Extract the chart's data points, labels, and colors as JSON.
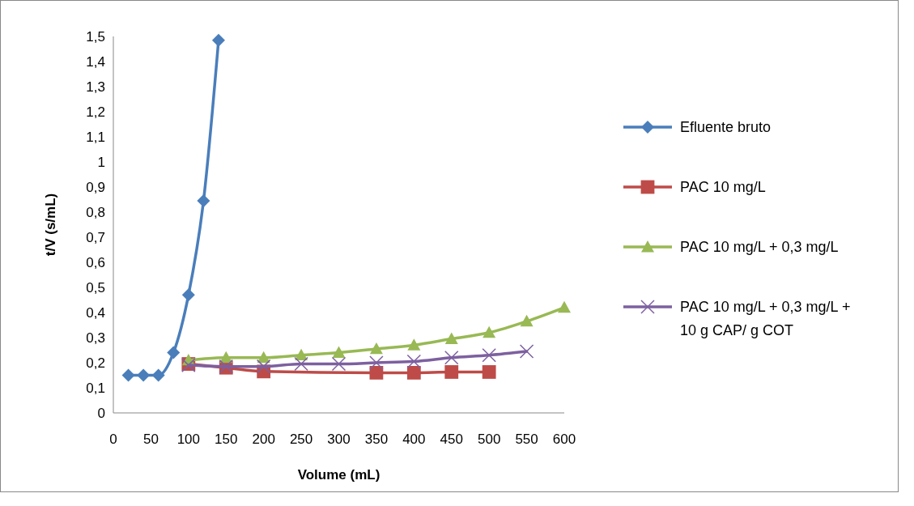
{
  "chart_data": {
    "type": "line",
    "xlabel": "Volume (mL)",
    "ylabel": "t/V (s/mL)",
    "xlim": [
      0,
      600
    ],
    "xticks": [
      0,
      50,
      100,
      150,
      200,
      250,
      300,
      350,
      400,
      450,
      500,
      550,
      600
    ],
    "ylim": [
      0,
      1.5
    ],
    "yticks": [
      {
        "value": 0,
        "label": "0"
      },
      {
        "value": 0.1,
        "label": "0,1"
      },
      {
        "value": 0.2,
        "label": "0,2"
      },
      {
        "value": 0.3,
        "label": "0,3"
      },
      {
        "value": 0.4,
        "label": "0,4"
      },
      {
        "value": 0.5,
        "label": "0,5"
      },
      {
        "value": 0.6,
        "label": "0,6"
      },
      {
        "value": 0.7,
        "label": "0,7"
      },
      {
        "value": 0.8,
        "label": "0,8"
      },
      {
        "value": 0.9,
        "label": "0,9"
      },
      {
        "value": 1,
        "label": "1"
      },
      {
        "value": 1.1,
        "label": "1,1"
      },
      {
        "value": 1.2,
        "label": "1,2"
      },
      {
        "value": 1.3,
        "label": "1,3"
      },
      {
        "value": 1.4,
        "label": "1,4"
      },
      {
        "value": 1.5,
        "label": "1,5"
      }
    ],
    "grid": false,
    "legend": "right",
    "series": [
      {
        "name": "Efluente bruto",
        "color": "#4a7ebb",
        "marker": "diamond",
        "x": [
          20,
          40,
          60,
          80,
          100,
          120,
          140
        ],
        "values": [
          0.15,
          0.15,
          0.15,
          0.24,
          0.47,
          0.845,
          1.485
        ]
      },
      {
        "name": "PAC 10 mg/L",
        "color": "#be4b48",
        "marker": "square",
        "x": [
          100,
          150,
          200,
          350,
          400,
          450,
          500
        ],
        "values": [
          0.195,
          0.18,
          0.165,
          0.16,
          0.16,
          0.163,
          0.163
        ]
      },
      {
        "name": "PAC 10 mg/L + 0,3 mg/L",
        "color": "#98b954",
        "marker": "triangle",
        "x": [
          100,
          150,
          200,
          250,
          300,
          350,
          400,
          450,
          500,
          550,
          600
        ],
        "values": [
          0.21,
          0.22,
          0.22,
          0.23,
          0.24,
          0.255,
          0.27,
          0.295,
          0.32,
          0.365,
          0.42
        ]
      },
      {
        "name": "PAC 10 mg/L + 0,3 mg/L + 10 g CAP/ g COT",
        "color": "#7d60a0",
        "marker": "cross",
        "x": [
          100,
          150,
          200,
          250,
          300,
          350,
          400,
          450,
          500,
          550
        ],
        "values": [
          0.19,
          0.185,
          0.185,
          0.195,
          0.195,
          0.2,
          0.205,
          0.22,
          0.23,
          0.245
        ]
      }
    ]
  }
}
